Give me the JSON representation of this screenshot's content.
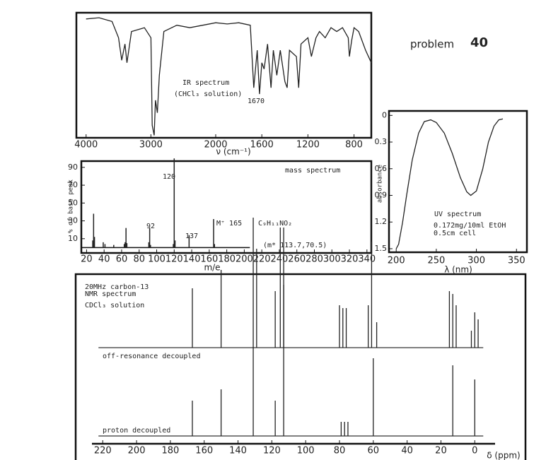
{
  "header": {
    "title": "problem",
    "number": "40"
  },
  "chart_data": [
    {
      "type": "line",
      "x_label": "ν (cm⁻¹)",
      "annotations": [
        "IR spectrum",
        "(CHCl₃ solution)",
        "1670"
      ],
      "x": [
        4000,
        3800,
        3600,
        3500,
        3450,
        3400,
        3370,
        3300,
        3100,
        3000,
        2980,
        2950,
        2930,
        2900,
        2870,
        2800,
        2600,
        2400,
        2200,
        2000,
        1900,
        1800,
        1700,
        1670,
        1640,
        1620,
        1600,
        1580,
        1550,
        1520,
        1500,
        1470,
        1440,
        1400,
        1380,
        1360,
        1300,
        1280,
        1260,
        1200,
        1170,
        1130,
        1100,
        1050,
        1000,
        950,
        900,
        850,
        840,
        820,
        800,
        760,
        700,
        650
      ],
      "values": [
        95,
        96,
        93,
        80,
        62,
        75,
        60,
        85,
        88,
        80,
        10,
        2,
        30,
        20,
        50,
        85,
        90,
        88,
        90,
        92,
        91,
        92,
        90,
        40,
        70,
        35,
        60,
        55,
        75,
        40,
        70,
        50,
        70,
        45,
        40,
        70,
        65,
        40,
        75,
        80,
        65,
        80,
        85,
        80,
        88,
        85,
        88,
        80,
        65,
        78,
        88,
        85,
        70,
        60
      ],
      "color": "#222222",
      "xlim": [
        4150,
        650
      ],
      "xticks": [
        4000,
        3000,
        2000,
        1600,
        1200,
        800
      ],
      "ylim": [
        0,
        100
      ]
    },
    {
      "type": "bar",
      "x_label": "m/e",
      "y_label": "% of base peak",
      "annotations": [
        "mass spectrum",
        "120",
        "92",
        "137",
        "M⁺ 165",
        "C₉H₁₁NO₂",
        "(m* 113.7,70.5)"
      ],
      "x": [
        27,
        28,
        29,
        39,
        41,
        51,
        63,
        64,
        65,
        66,
        91,
        92,
        93,
        119,
        120,
        121,
        137,
        165,
        166
      ],
      "values": [
        8,
        38,
        12,
        6,
        4,
        3,
        4,
        6,
        22,
        5,
        6,
        22,
        3,
        4,
        100,
        8,
        14,
        32,
        4
      ],
      "color": "#222222",
      "xlim": [
        14,
        345
      ],
      "xticks": [
        20,
        40,
        60,
        80,
        100,
        120,
        140,
        160,
        180,
        200,
        220,
        240,
        260,
        280,
        300,
        320,
        340
      ],
      "ylim": [
        -6,
        97
      ],
      "yticks": [
        10,
        30,
        50,
        70,
        90
      ]
    },
    {
      "type": "line",
      "x_label": "λ (nm)",
      "y_label": "absorbance",
      "annotations": [
        "UV spectrum",
        "0.172mg/10ml EtOH",
        "0.5cm cell"
      ],
      "x": [
        200,
        203,
        208,
        213,
        220,
        228,
        235,
        243,
        250,
        260,
        270,
        280,
        288,
        293,
        300,
        308,
        315,
        322,
        328,
        333
      ],
      "values": [
        1.5,
        1.45,
        1.2,
        0.9,
        0.5,
        0.2,
        0.07,
        0.05,
        0.08,
        0.2,
        0.43,
        0.7,
        0.86,
        0.9,
        0.85,
        0.6,
        0.3,
        0.12,
        0.05,
        0.04
      ],
      "color": "#222222",
      "xlim": [
        191,
        363
      ],
      "xticks": [
        200,
        250,
        300,
        350
      ],
      "ylim": [
        -0.05,
        1.54
      ],
      "yticks": [
        0,
        0.3,
        0.6,
        0.9,
        1.2,
        1.5
      ],
      "y_inverted": true
    },
    {
      "type": "stick",
      "x_label": "δ (ppm)",
      "annotations": [
        "20MHz carbon-13",
        "NMR spectrum",
        "CDCl₃ solution"
      ],
      "xlim": [
        236,
        -30
      ],
      "xticks": [
        220,
        200,
        180,
        160,
        140,
        120,
        100,
        80,
        60,
        40,
        20,
        0
      ],
      "ylim": [
        0,
        120
      ],
      "color": "#222222",
      "series": [
        {
          "name": "off-resonance decoupled",
          "x": [
            167,
            150,
            131,
            129,
            118,
            115,
            113,
            80,
            78,
            76,
            63,
            61,
            58,
            15,
            13,
            11,
            2,
            0,
            -2
          ],
          "values": [
            42,
            55,
            92,
            70,
            40,
            85,
            85,
            30,
            28,
            28,
            30,
            75,
            18,
            40,
            38,
            30,
            12,
            25,
            20
          ]
        },
        {
          "name": "proton decoupled",
          "x": [
            167,
            150,
            131,
            118,
            113,
            79,
            77,
            75,
            60,
            13,
            0
          ],
          "values": [
            25,
            33,
            63,
            25,
            107,
            10,
            10,
            10,
            55,
            50,
            40
          ]
        }
      ]
    }
  ]
}
